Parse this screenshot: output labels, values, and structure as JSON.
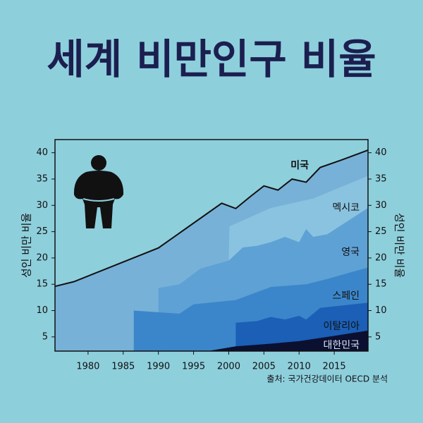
{
  "chart_data": {
    "type": "area",
    "title": "세계 비만인구 비율",
    "ylabel": "성인 비만 비율",
    "source": "출처: 국가건강데이터 OECD 분석",
    "xlim": [
      1975.3,
      2019.8
    ],
    "xticks": [
      1980,
      1985,
      1990,
      1995,
      2000,
      2005,
      2010,
      2015
    ],
    "ylim": [
      2.3,
      42.5
    ],
    "yticks": [
      5,
      10,
      15,
      20,
      25,
      30,
      35,
      40
    ],
    "series": [
      {
        "name": "미국",
        "color": "#78b1d7",
        "line_color": "#111111",
        "x": [
          1975.3,
          1978,
          1990,
          1999,
          2001,
          2003,
          2005,
          2007,
          2009,
          2011,
          2013,
          2016,
          2019.8
        ],
        "values": [
          14.6,
          15.5,
          21.9,
          30.4,
          29.4,
          31.6,
          33.7,
          32.9,
          35,
          34.4,
          37.2,
          38.6,
          40.5
        ]
      },
      {
        "name": "멕시코",
        "color": "#8ac3e0",
        "x": [
          2000,
          2000.1,
          2006,
          2012,
          2016,
          2019.8
        ],
        "values": [
          19,
          26,
          29.5,
          31.3,
          33.5,
          35.6
        ]
      },
      {
        "name": "영국",
        "color": "#5ea1d5",
        "x": [
          1990,
          1993,
          1996,
          2000,
          2002,
          2004,
          2006,
          2008,
          2010,
          2011,
          2012,
          2014,
          2019.8
        ],
        "values": [
          14.3,
          15,
          18,
          19.5,
          22,
          22.3,
          23,
          24,
          23,
          25.5,
          24,
          24.5,
          29.5
        ]
      },
      {
        "name": "스페인",
        "color": "#3b86ca",
        "x": [
          1986.5,
          1993,
          1995,
          2001,
          2003,
          2006,
          2011,
          2014,
          2019.8
        ],
        "values": [
          10,
          9.4,
          11.2,
          12,
          13,
          14.5,
          15,
          16,
          18.2
        ]
      },
      {
        "name": "이탈리아",
        "color": "#1b5fb6",
        "x": [
          2001,
          2004,
          2006,
          2008,
          2010,
          2011,
          2013,
          2019.8
        ],
        "values": [
          7.7,
          8,
          8.8,
          8.3,
          9,
          8.3,
          10.5,
          11.5
        ]
      },
      {
        "name": "대한민국",
        "color": "#0b1030",
        "x": [
          1997,
          2001,
          2005,
          2010,
          2015,
          2019.8
        ],
        "values": [
          2.3,
          3.2,
          3.6,
          4.2,
          5.2,
          6.2
        ]
      }
    ]
  }
}
